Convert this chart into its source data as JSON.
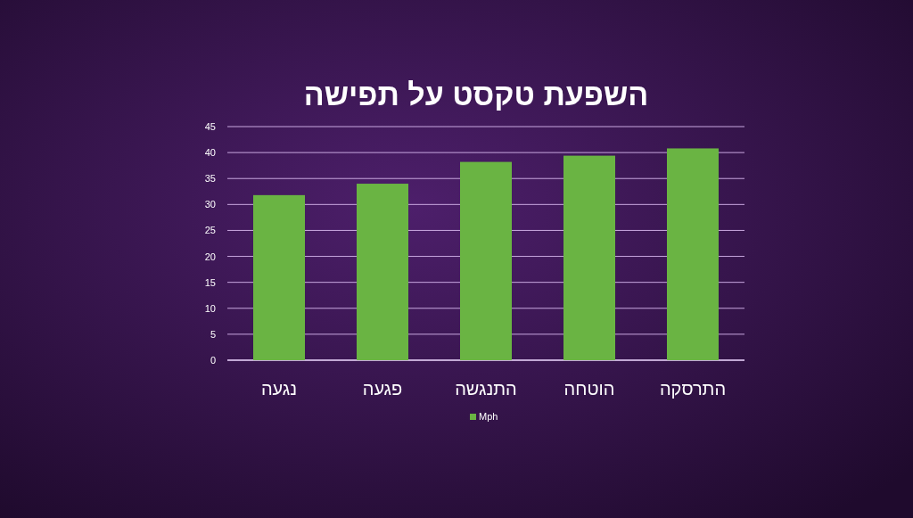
{
  "chart_data": {
    "type": "bar",
    "title": "השפעת טקסט על תפישה",
    "categories": [
      "נגעה",
      "פגעה",
      "התנגשה",
      "הוטחה",
      "התרסקה"
    ],
    "series": [
      {
        "name": "Mph",
        "color": "#6ab443",
        "values": [
          31.8,
          34.0,
          38.2,
          39.4,
          40.8
        ]
      }
    ],
    "ylim": [
      0,
      45
    ],
    "yticks": [
      0,
      5,
      10,
      15,
      20,
      25,
      30,
      35,
      40,
      45
    ],
    "grid": "y",
    "legend": "bottom"
  }
}
